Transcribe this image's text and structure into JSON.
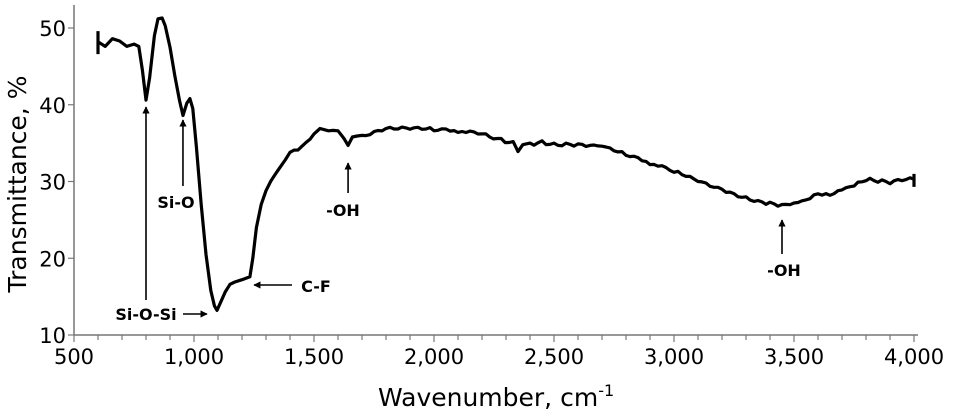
{
  "chart_data": {
    "type": "line",
    "title": "",
    "xlabel": "Wavenumber, cm",
    "xlabel_sup": "-1",
    "ylabel": "Transmittance, %",
    "xlim": [
      500,
      4000
    ],
    "ylim": [
      10,
      50
    ],
    "x_ticks": [
      "500",
      "1,000",
      "1,500",
      "2,000",
      "2,500",
      "3,000",
      "3,500",
      "4,000"
    ],
    "x_tick_values": [
      500,
      1000,
      1500,
      2000,
      2500,
      3000,
      3500,
      4000
    ],
    "y_ticks": [
      "10",
      "20",
      "30",
      "40",
      "50"
    ],
    "y_tick_values": [
      10,
      20,
      30,
      40,
      50
    ],
    "grid": false,
    "line_color": "#000000",
    "series": [
      {
        "x": [
          600,
          630,
          660,
          690,
          720,
          750,
          770,
          785,
          800,
          815,
          835,
          850,
          867,
          880,
          900,
          920,
          940,
          954,
          970,
          983,
          995,
          1010,
          1030,
          1050,
          1070,
          1085,
          1096,
          1110,
          1130,
          1150,
          1170,
          1200,
          1233,
          1245,
          1260,
          1280,
          1300,
          1340,
          1380,
          1400,
          1450,
          1500,
          1525,
          1560,
          1600,
          1625,
          1642,
          1660,
          1700,
          1750,
          1800,
          1900,
          2000,
          2100,
          2200,
          2280,
          2330,
          2350,
          2370,
          2400,
          2450,
          2500,
          2550,
          2600,
          2650,
          2700,
          2750,
          2800,
          2900,
          3000,
          3100,
          3200,
          3300,
          3400,
          3450,
          3500,
          3550,
          3600,
          3650,
          3700,
          3750,
          3800,
          3850,
          3900,
          3950,
          4000
        ],
        "y": [
          48.2,
          47.6,
          48.6,
          48.3,
          47.6,
          47.9,
          47.6,
          44.5,
          40.6,
          43.5,
          49.0,
          51.2,
          51.3,
          50.3,
          47.5,
          43.8,
          40.5,
          38.6,
          40.2,
          40.8,
          39.5,
          34.5,
          27.0,
          20.5,
          15.8,
          13.8,
          13.2,
          14.2,
          15.6,
          16.6,
          16.9,
          17.2,
          17.6,
          20.0,
          24.0,
          27.0,
          28.8,
          31.0,
          32.8,
          33.8,
          34.6,
          36.2,
          36.9,
          36.6,
          36.6,
          35.6,
          34.7,
          35.8,
          36.0,
          36.5,
          36.9,
          36.8,
          36.6,
          36.4,
          36.2,
          35.6,
          35.2,
          33.9,
          34.8,
          35.0,
          35.3,
          35.0,
          35.0,
          34.9,
          34.7,
          34.6,
          34.0,
          33.4,
          32.2,
          31.2,
          30.0,
          29.0,
          28.0,
          27.3,
          27.0,
          27.2,
          27.6,
          28.4,
          28.2,
          28.9,
          29.4,
          30.1,
          29.9,
          29.7,
          30.1,
          30.3
        ]
      }
    ],
    "annotations": [
      {
        "text": "Si-O-Si",
        "wavenumber": 800
      },
      {
        "text": "Si-O",
        "wavenumber": 954
      },
      {
        "text": "C-F",
        "wavenumber": 1233
      },
      {
        "text": "-OH",
        "wavenumber": 1642
      },
      {
        "text": "-OH",
        "wavenumber": 3450
      }
    ]
  }
}
